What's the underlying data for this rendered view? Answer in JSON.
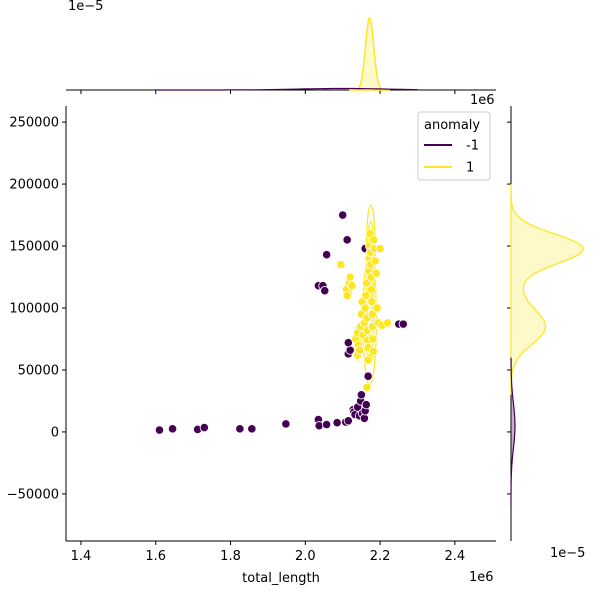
{
  "chart_data": {
    "type": "scatter",
    "title": "",
    "xlabel": "total_length",
    "ylabel": "",
    "x_offset_label": "1e6",
    "y_offset_label": "",
    "top_marginal_offset_label": "1e−5",
    "right_marginal_offset_label": "1e−5",
    "right_marginal_top_offset_label": "1e6",
    "xlim": [
      1360000,
      2510000
    ],
    "ylim": [
      -88000,
      263000
    ],
    "x_ticks": [
      1400000,
      1600000,
      1800000,
      2000000,
      2200000,
      2400000
    ],
    "x_tick_labels": [
      "1.4",
      "1.6",
      "1.8",
      "2.0",
      "2.2",
      "2.4"
    ],
    "y_ticks": [
      -50000,
      0,
      50000,
      100000,
      150000,
      200000,
      250000
    ],
    "y_tick_labels": [
      "−50000",
      "0",
      "50000",
      "100000",
      "150000",
      "200000",
      "250000"
    ],
    "grid": false,
    "legend": {
      "title": "anomaly",
      "placement": "top-right",
      "entries": [
        {
          "label": "-1",
          "color": "#440154"
        },
        {
          "label": "1",
          "color": "#fde725"
        }
      ]
    },
    "series": [
      {
        "name": "-1",
        "color": "#440154",
        "points": [
          [
            1610000,
            1500
          ],
          [
            1645000,
            2500
          ],
          [
            1712000,
            2000
          ],
          [
            1730000,
            3500
          ],
          [
            1825000,
            2500
          ],
          [
            1857000,
            2500
          ],
          [
            1948000,
            6500
          ],
          [
            2035000,
            10000
          ],
          [
            2037000,
            5000
          ],
          [
            2057000,
            6000
          ],
          [
            2085000,
            7500
          ],
          [
            2108000,
            8000
          ],
          [
            2115000,
            9000
          ],
          [
            2128000,
            18000
          ],
          [
            2130000,
            16000
          ],
          [
            2133000,
            14000
          ],
          [
            2140000,
            20000
          ],
          [
            2145000,
            13000
          ],
          [
            2148000,
            25000
          ],
          [
            2150000,
            30000
          ],
          [
            2153000,
            15000
          ],
          [
            2158000,
            11000
          ],
          [
            2160000,
            17000
          ],
          [
            2163000,
            22000
          ],
          [
            2168000,
            45000
          ],
          [
            2115000,
            63000
          ],
          [
            2120000,
            66000
          ],
          [
            2115000,
            72000
          ],
          [
            2035000,
            118000
          ],
          [
            2047000,
            118000
          ],
          [
            2052000,
            114000
          ],
          [
            2057000,
            143000
          ],
          [
            2100000,
            175000
          ],
          [
            2112000,
            155000
          ],
          [
            2160000,
            148000
          ],
          [
            2250000,
            87000
          ],
          [
            2262000,
            87000
          ]
        ]
      },
      {
        "name": "1",
        "color": "#fde725",
        "points": [
          [
            2095000,
            135000
          ],
          [
            2110000,
            115000
          ],
          [
            2112000,
            110000
          ],
          [
            2118000,
            120000
          ],
          [
            2120000,
            125000
          ],
          [
            2125000,
            118000
          ],
          [
            2140000,
            62000
          ],
          [
            2135000,
            75000
          ],
          [
            2140000,
            80000
          ],
          [
            2142000,
            70000
          ],
          [
            2145000,
            66000
          ],
          [
            2148000,
            85000
          ],
          [
            2150000,
            95000
          ],
          [
            2152000,
            105000
          ],
          [
            2155000,
            78000
          ],
          [
            2158000,
            88000
          ],
          [
            2160000,
            100000
          ],
          [
            2162000,
            110000
          ],
          [
            2164000,
            120000
          ],
          [
            2165000,
            92000
          ],
          [
            2166000,
            82000
          ],
          [
            2167000,
            74000
          ],
          [
            2168000,
            68000
          ],
          [
            2170000,
            130000
          ],
          [
            2171000,
            140000
          ],
          [
            2172000,
            150000
          ],
          [
            2173000,
            160000
          ],
          [
            2174000,
            145000
          ],
          [
            2175000,
            135000
          ],
          [
            2176000,
            125000
          ],
          [
            2177000,
            115000
          ],
          [
            2178000,
            105000
          ],
          [
            2179000,
            95000
          ],
          [
            2180000,
            85000
          ],
          [
            2181000,
            75000
          ],
          [
            2182000,
            65000
          ],
          [
            2183000,
            155000
          ],
          [
            2185000,
            148000
          ],
          [
            2187000,
            138000
          ],
          [
            2190000,
            128000
          ],
          [
            2192000,
            100000
          ],
          [
            2195000,
            88000
          ],
          [
            2200000,
            148000
          ],
          [
            2205000,
            86000
          ],
          [
            2220000,
            88000
          ],
          [
            2165000,
            36000
          ],
          [
            2172000,
            60000
          ],
          [
            2168000,
            58000
          ]
        ]
      }
    ]
  }
}
